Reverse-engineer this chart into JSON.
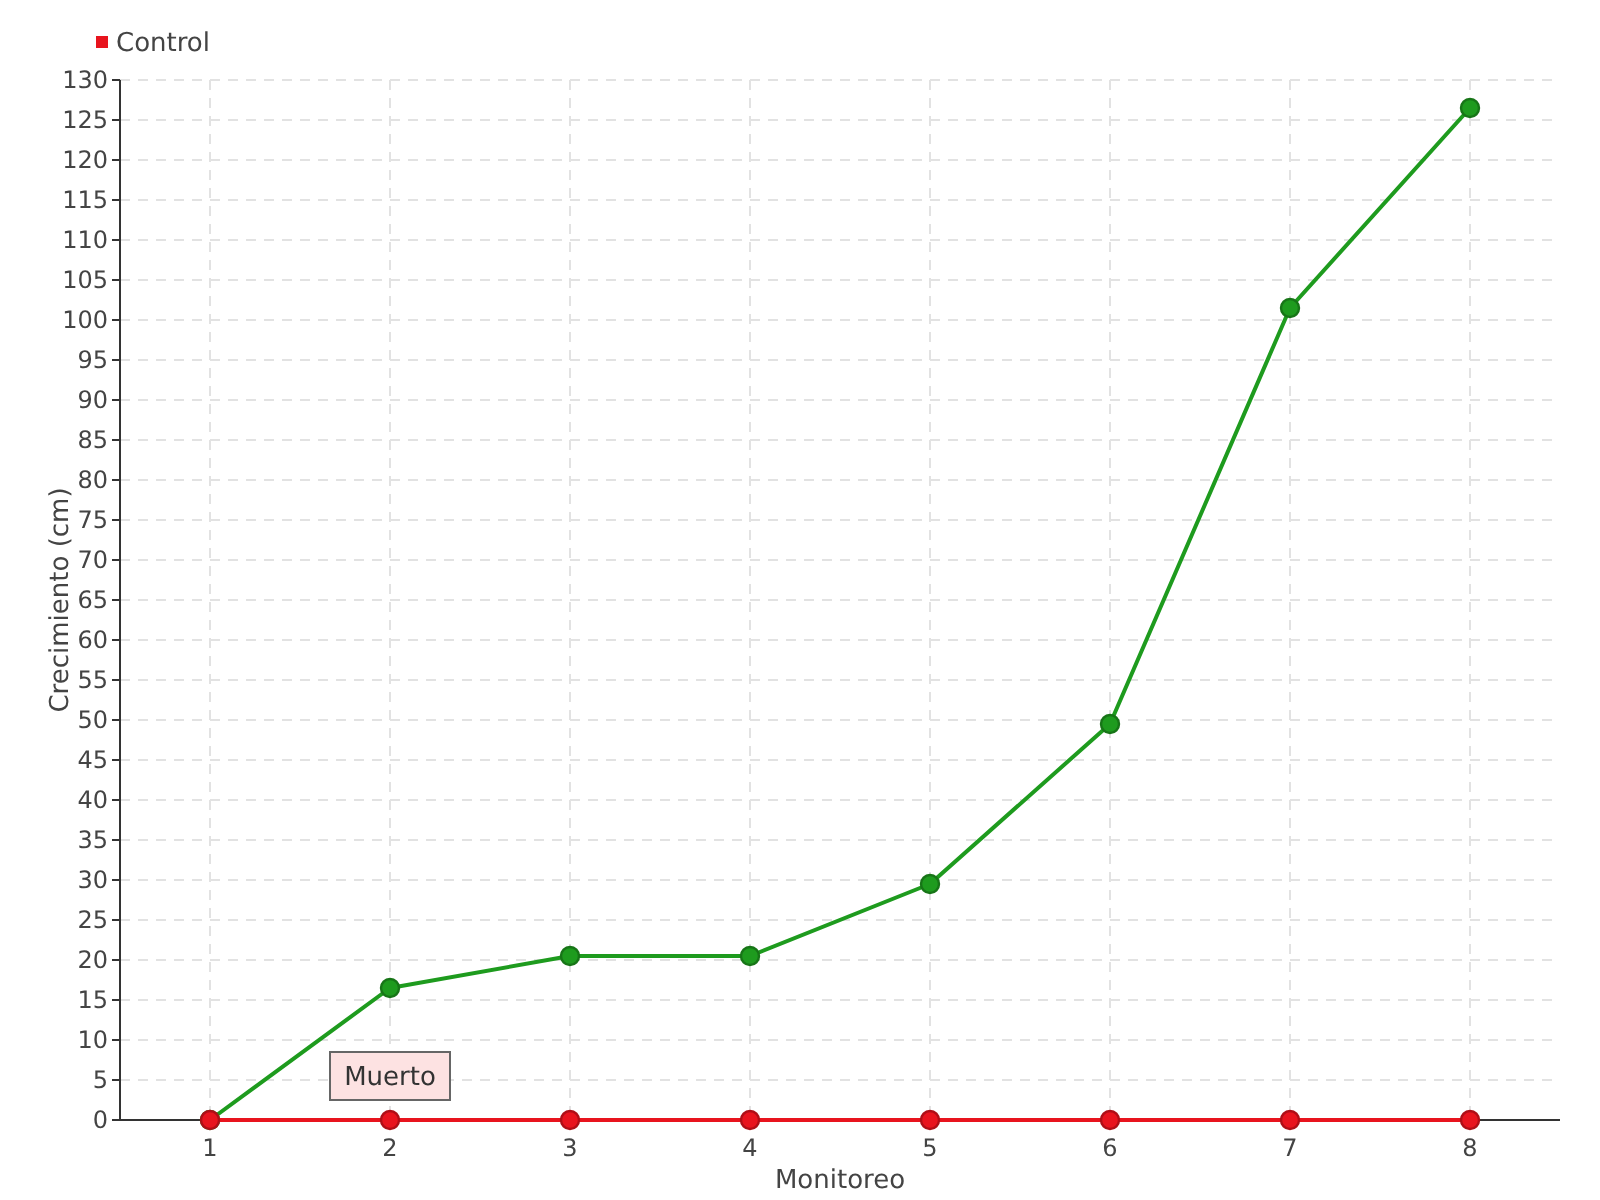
{
  "chart_data": {
    "type": "line",
    "xlabel": "Monitoreo",
    "ylabel": "Crecimiento (cm)",
    "categories": [
      "1",
      "2",
      "3",
      "4",
      "5",
      "6",
      "7",
      "8"
    ],
    "series": [
      {
        "color": "#1e9b1e",
        "values": [
          0,
          16.5,
          20.5,
          20.5,
          29.5,
          49.5,
          101.5,
          126.5
        ]
      },
      {
        "name": "Control",
        "color": "#e8141e",
        "values": [
          0,
          0,
          0,
          0,
          0,
          0,
          0,
          0
        ]
      }
    ],
    "ylim": [
      0,
      130
    ],
    "yticks": [
      0,
      5,
      10,
      15,
      20,
      25,
      30,
      35,
      40,
      45,
      50,
      55,
      60,
      65,
      70,
      75,
      80,
      85,
      90,
      95,
      100,
      105,
      110,
      115,
      120,
      125,
      130
    ],
    "grid": true,
    "legend": "top left",
    "marker": "circle",
    "line_style": "solid",
    "annotations": [
      {
        "text": "Muerto",
        "x": "2",
        "y": 0
      }
    ]
  }
}
